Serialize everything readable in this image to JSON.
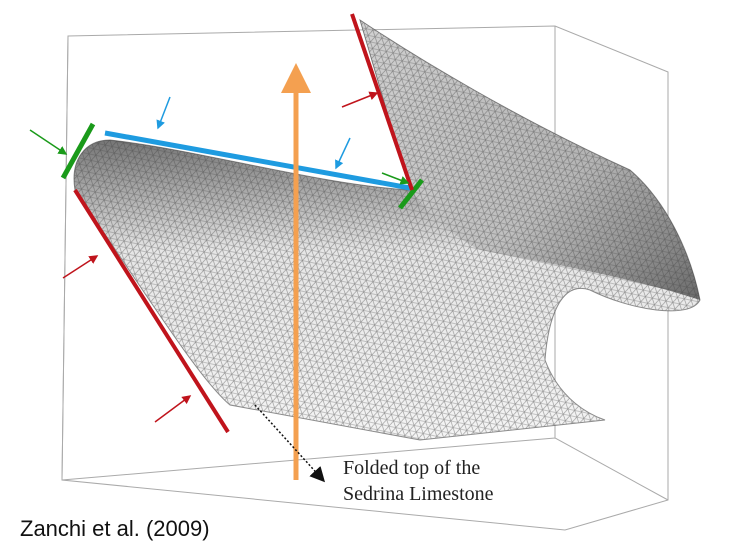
{
  "annotation": {
    "lines": [
      "Folded top of the",
      "Sedrina Limestone"
    ]
  },
  "citation": "Zanchi et al. (2009)"
}
